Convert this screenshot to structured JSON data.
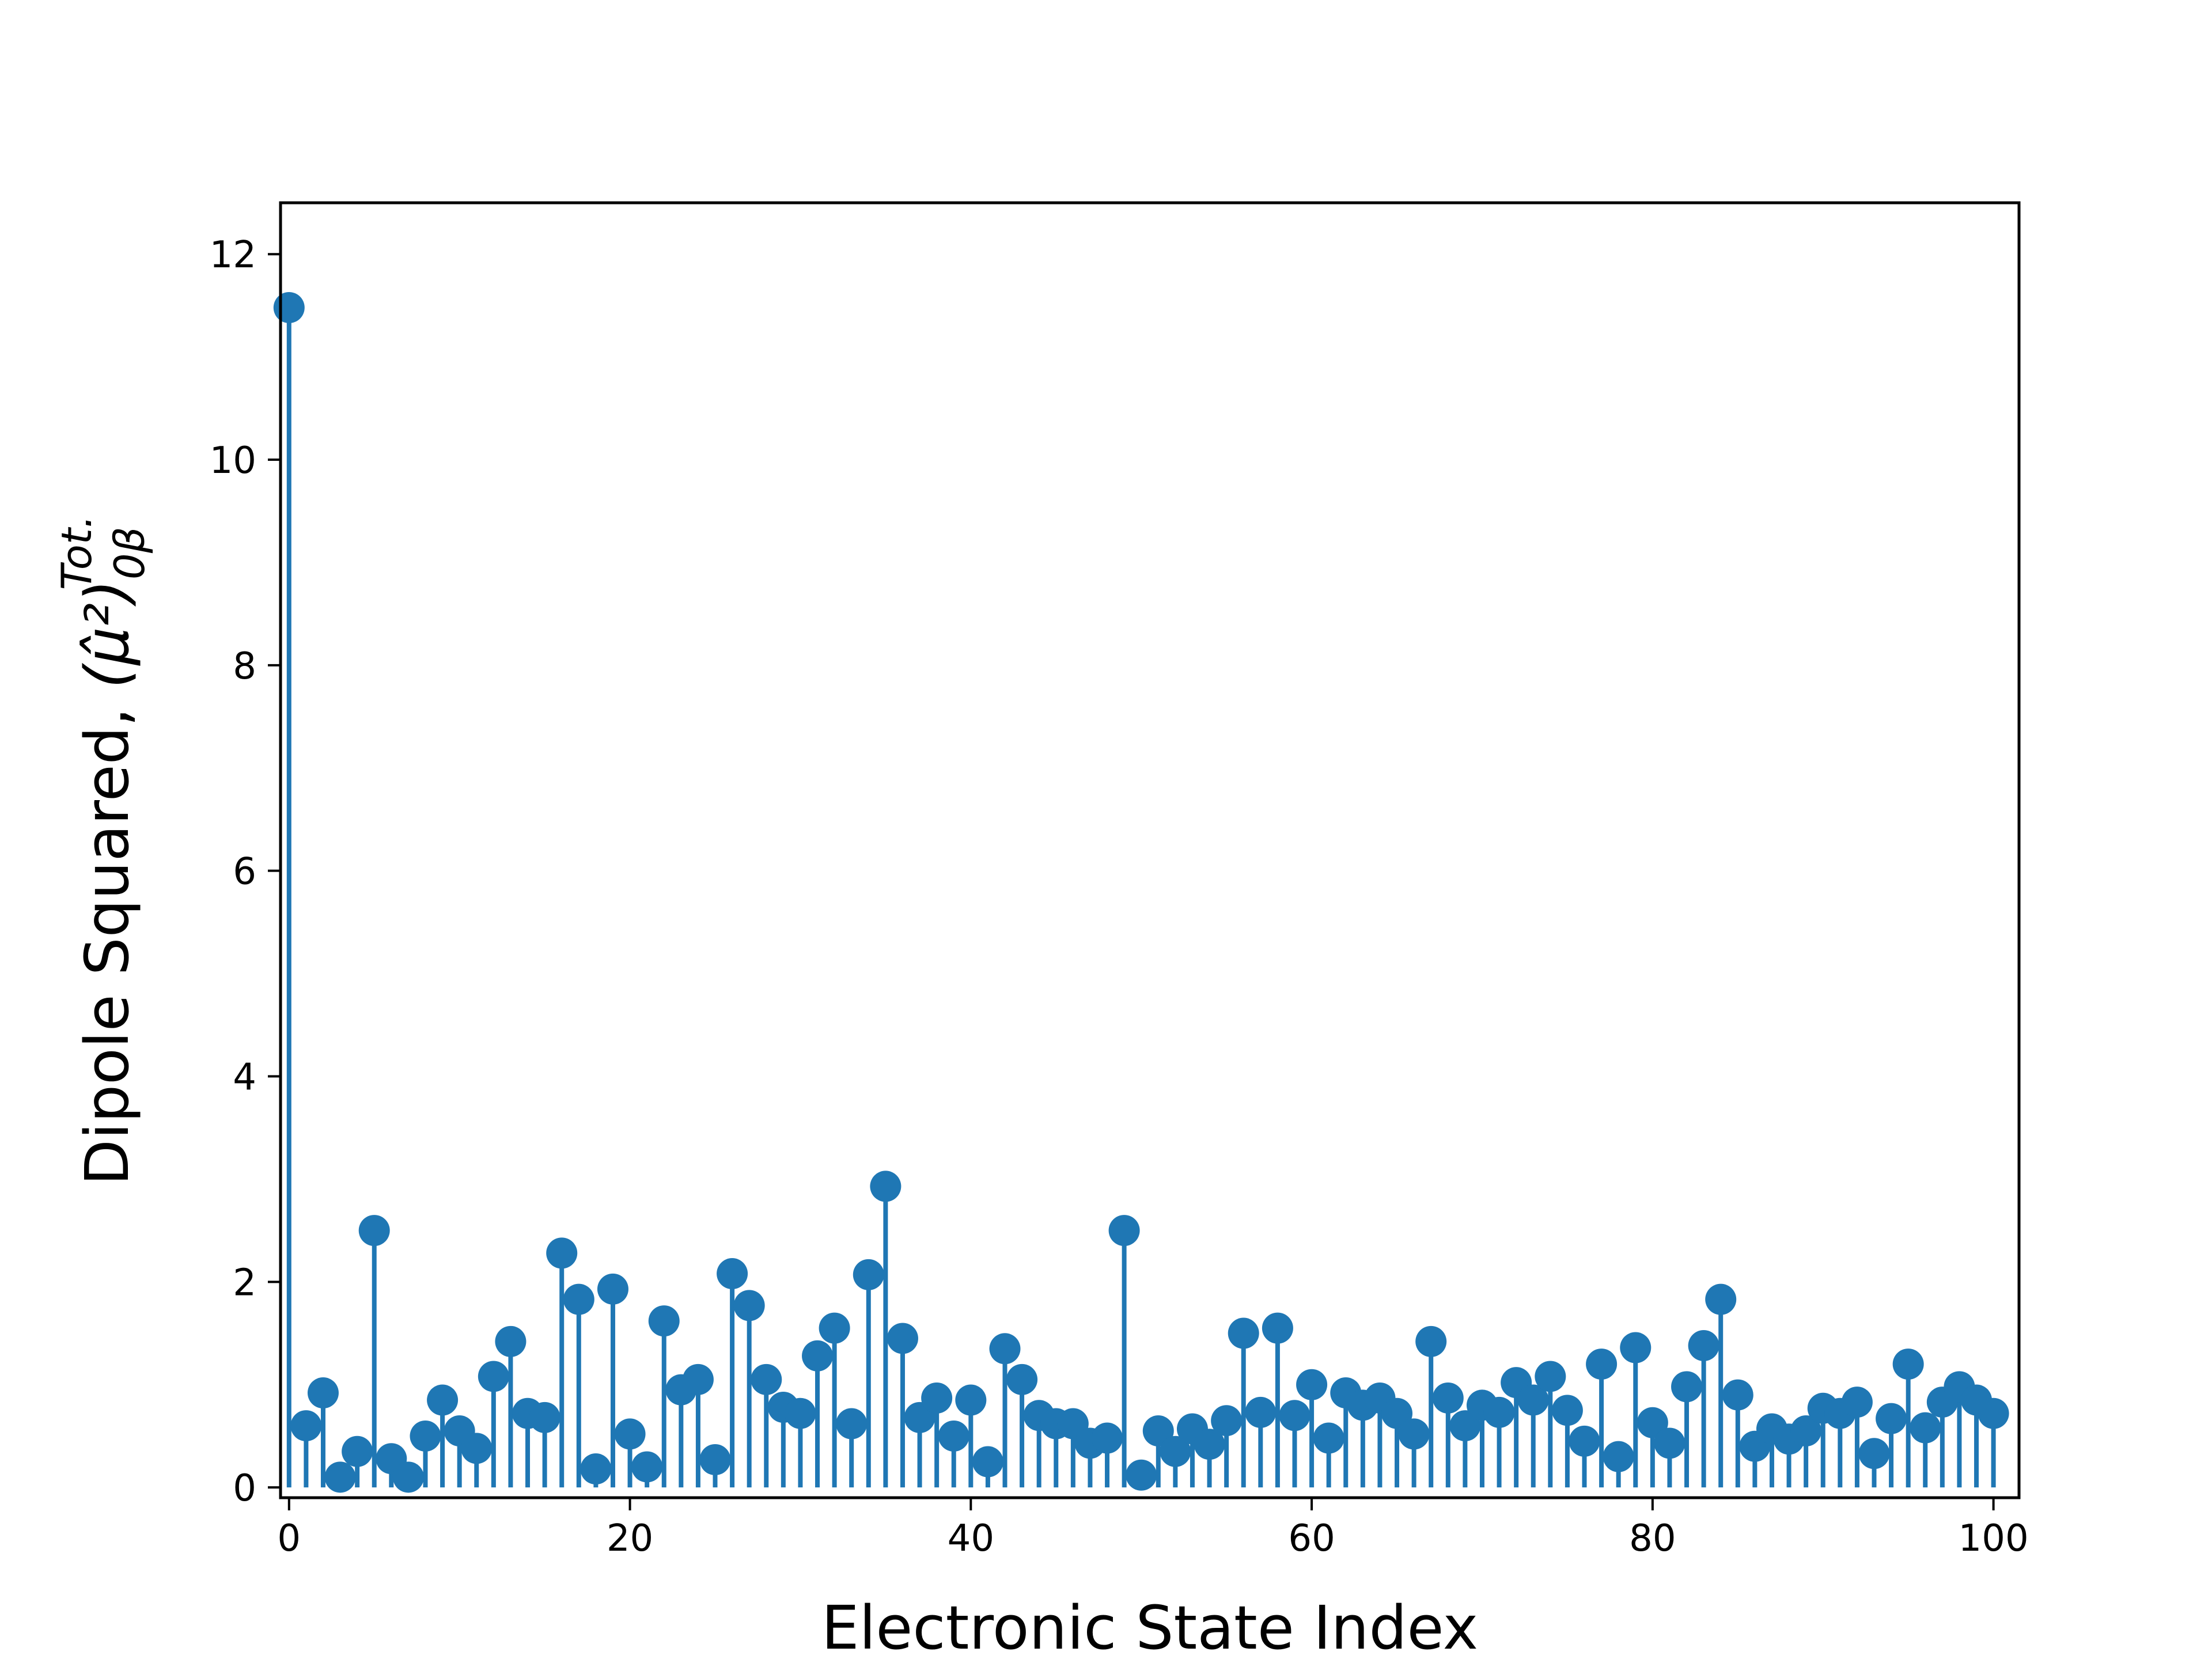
{
  "chart_data": {
    "type": "stem",
    "xlabel": "Electronic State Index",
    "ylabel_prefix": "Dipole Squared, ",
    "ylabel_math": "(μ̂²)",
    "ylabel_sub": "0β",
    "ylabel_sup": "Tot.",
    "xlim": [
      -0.5,
      101.5
    ],
    "ylim": [
      -0.1,
      12.5
    ],
    "xticks": [
      0,
      20,
      40,
      60,
      80,
      100
    ],
    "yticks": [
      0,
      2,
      4,
      6,
      8,
      10,
      12
    ],
    "grid": false,
    "legend": "none",
    "color": "#1f77b4",
    "x": [
      0,
      1,
      2,
      3,
      4,
      5,
      6,
      7,
      8,
      9,
      10,
      11,
      12,
      13,
      14,
      15,
      16,
      17,
      18,
      19,
      20,
      21,
      22,
      23,
      24,
      25,
      26,
      27,
      28,
      29,
      30,
      31,
      32,
      33,
      34,
      35,
      36,
      37,
      38,
      39,
      40,
      41,
      42,
      43,
      44,
      45,
      46,
      47,
      48,
      49,
      50,
      51,
      52,
      53,
      54,
      55,
      56,
      57,
      58,
      59,
      60,
      61,
      62,
      63,
      64,
      65,
      66,
      67,
      68,
      69,
      70,
      71,
      72,
      73,
      74,
      75,
      76,
      77,
      78,
      79,
      80,
      81,
      82,
      83,
      84,
      85,
      86,
      87,
      88,
      89,
      90,
      91,
      92,
      93,
      94,
      95,
      96,
      97,
      98,
      99,
      100
    ],
    "values": [
      11.48,
      0.6,
      0.92,
      0.1,
      0.35,
      2.5,
      0.28,
      0.1,
      0.5,
      0.85,
      0.55,
      0.38,
      1.08,
      1.42,
      0.72,
      0.68,
      2.28,
      1.83,
      0.18,
      1.93,
      0.52,
      0.2,
      1.62,
      0.95,
      1.05,
      0.27,
      2.08,
      1.77,
      1.05,
      0.78,
      0.72,
      1.28,
      1.55,
      0.62,
      2.07,
      2.93,
      1.45,
      0.68,
      0.87,
      0.5,
      0.85,
      0.25,
      1.35,
      1.05,
      0.7,
      0.62,
      0.62,
      0.43,
      0.48,
      2.5,
      0.12,
      0.55,
      0.35,
      0.57,
      0.42,
      0.65,
      1.5,
      0.73,
      1.55,
      0.7,
      1.0,
      0.48,
      0.92,
      0.8,
      0.87,
      0.72,
      0.52,
      1.42,
      0.87,
      0.6,
      0.8,
      0.73,
      1.02,
      0.85,
      1.08,
      0.75,
      0.45,
      1.2,
      0.3,
      1.36,
      0.63,
      0.43,
      0.98,
      1.38,
      1.83,
      0.9,
      0.4,
      0.57,
      0.47,
      0.55,
      0.77,
      0.72,
      0.83,
      0.33,
      0.67,
      1.2,
      0.58,
      0.83,
      0.98,
      0.85,
      0.72
    ]
  }
}
